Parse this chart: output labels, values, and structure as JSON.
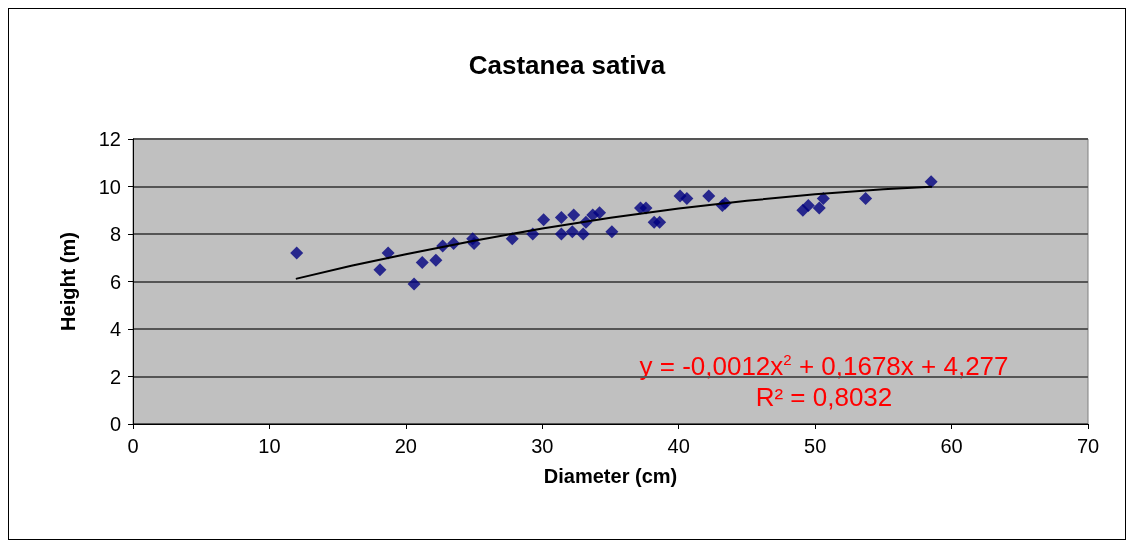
{
  "chart_data": {
    "type": "scatter",
    "title": "Castanea sativa",
    "xlabel": "Diameter (cm)",
    "ylabel": "Height (m)",
    "xlim": [
      0,
      70
    ],
    "xticks": [
      0,
      10,
      20,
      30,
      40,
      50,
      60,
      70
    ],
    "ylim": [
      0,
      12
    ],
    "yticks": [
      0,
      2,
      4,
      6,
      8,
      10,
      12
    ],
    "grid": "y",
    "marker": "diamond",
    "annotations": [
      "y = -0,0012x$^{2}$ + 0,1678x + 4,277",
      "R² = 0,8032"
    ],
    "series": [
      {
        "color": "#000080",
        "x": [
          12,
          18.1,
          18.7,
          20.6,
          21.2,
          22.2,
          22.7,
          23.5,
          24.9,
          25.0,
          27.8,
          29.3,
          30.1,
          31.4,
          31.4,
          32.2,
          32.3,
          33.0,
          33.2,
          33.7,
          34.2,
          35.1,
          37.2,
          37.6,
          38.2,
          38.6,
          40.1,
          40.6,
          42.2,
          43.2,
          43.4,
          49.1,
          49.5,
          50.3,
          50.6,
          53.7,
          58.5
        ],
        "values": [
          7.2,
          6.5,
          7.2,
          5.9,
          6.8,
          6.9,
          7.5,
          7.6,
          7.8,
          7.6,
          7.8,
          8.0,
          8.6,
          8.7,
          8.0,
          8.1,
          8.8,
          8.0,
          8.5,
          8.8,
          8.9,
          8.1,
          9.1,
          9.1,
          8.5,
          8.5,
          9.6,
          9.5,
          9.6,
          9.2,
          9.3,
          9.0,
          9.2,
          9.1,
          9.5,
          9.5,
          10.2
        ]
      },
      {
        "type": "line",
        "color": "#000000",
        "marker": "none",
        "x": [
          12,
          16,
          20,
          25,
          30,
          35,
          40,
          45,
          50,
          55,
          58.5
        ],
        "values": [
          6.12,
          6.66,
          7.15,
          7.72,
          8.23,
          8.68,
          9.07,
          9.4,
          9.67,
          9.88,
          9.99
        ]
      }
    ]
  }
}
